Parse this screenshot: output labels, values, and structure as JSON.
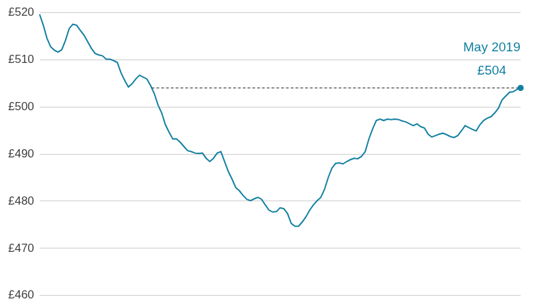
{
  "chart_data": {
    "type": "line",
    "color": "#1380a1",
    "categories": [
      null,
      null,
      null,
      null,
      null,
      null,
      null,
      null,
      null,
      null,
      null,
      null,
      null,
      null,
      null,
      null,
      null,
      null,
      null,
      null,
      null,
      null,
      null,
      null,
      null,
      null,
      null,
      null,
      null,
      null,
      null,
      null,
      null,
      null,
      null,
      null,
      null,
      null,
      null,
      null,
      null,
      null,
      null,
      null,
      null,
      null,
      null,
      null,
      null,
      null,
      null,
      null,
      null,
      null,
      null,
      null,
      null,
      null,
      null,
      null,
      null,
      null,
      null,
      null,
      null,
      null,
      null,
      null,
      null,
      null,
      null,
      null,
      null,
      null,
      null,
      null,
      null,
      null,
      null,
      null,
      null,
      null,
      null,
      null,
      null,
      null,
      null,
      null,
      null,
      null,
      null,
      null,
      null,
      null,
      null,
      null,
      null,
      null,
      null,
      null,
      null,
      null,
      null,
      null,
      null,
      null,
      null,
      null,
      null,
      null,
      null,
      null,
      null,
      null,
      null,
      null,
      null,
      null,
      null,
      null,
      null,
      null,
      null,
      null,
      null,
      null,
      null,
      null,
      null,
      null,
      null
    ],
    "values": [
      519.6,
      517.3,
      514.5,
      512.7,
      512,
      511.6,
      512.1,
      514.1,
      516.6,
      517.5,
      517.3,
      516.2,
      515.2,
      513.8,
      512.4,
      511.3,
      511,
      510.8,
      510.1,
      510.1,
      509.8,
      509.4,
      507.2,
      505.6,
      504.2,
      504.9,
      505.9,
      506.7,
      506.3,
      505.9,
      504.5,
      502.8,
      500.4,
      498.7,
      496.2,
      494.6,
      493.2,
      493.2,
      492.5,
      491.6,
      490.7,
      490.5,
      490.2,
      490.1,
      490.2,
      489.1,
      488.4,
      489.1,
      490.2,
      490.5,
      488.4,
      486.3,
      484.7,
      482.9,
      482.2,
      481.2,
      480.4,
      480.1,
      480.5,
      480.8,
      480.4,
      479.2,
      478.1,
      477.7,
      477.8,
      478.6,
      478.4,
      477.4,
      475.3,
      474.7,
      474.7,
      475.6,
      476.7,
      478.1,
      479.2,
      480.1,
      480.8,
      482.5,
      485,
      487,
      488,
      488.1,
      487.9,
      488.4,
      488.8,
      489.1,
      489,
      489.5,
      490.5,
      493.2,
      495.3,
      497.1,
      497.4,
      497.1,
      497.4,
      497.3,
      497.4,
      497.3,
      497,
      496.8,
      496.4,
      496,
      496.4,
      495.8,
      495.5,
      494.2,
      493.6,
      493.9,
      494.2,
      494.4,
      494.1,
      493.7,
      493.5,
      493.9,
      494.9,
      496,
      495.6,
      495.2,
      494.9,
      496.2,
      497.1,
      497.6,
      497.9,
      498.7,
      499.7,
      501.5,
      502.3,
      503.1,
      503.2,
      503.7,
      504
    ],
    "ylim": [
      460,
      520
    ],
    "yticks": [
      {
        "value": 460,
        "label": "£460"
      },
      {
        "value": 470,
        "label": "£470"
      },
      {
        "value": 480,
        "label": "£480"
      },
      {
        "value": 490,
        "label": "£490"
      },
      {
        "value": 500,
        "label": "£500"
      },
      {
        "value": 510,
        "label": "£510"
      },
      {
        "value": 520,
        "label": "£520"
      }
    ],
    "grid": true,
    "tick_labels": "y",
    "annotation": {
      "text": "May 2019",
      "value": 504,
      "value_label": "£504"
    }
  }
}
